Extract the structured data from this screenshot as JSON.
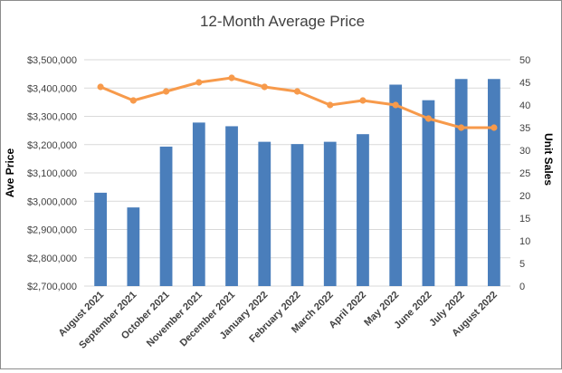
{
  "chart_data": {
    "type": "bar",
    "title": "12-Month Average Price",
    "ylabel": "Ave Price",
    "y2label": "Unit Sales",
    "categories": [
      "August 2021",
      "September 2021",
      "October 2021",
      "November 2021",
      "December 2021",
      "January 2022",
      "February 2022",
      "March 2022",
      "April 2022",
      "May 2022",
      "June 2022",
      "July 2022",
      "August 2022"
    ],
    "y_ticks": [
      "$2,700,000",
      "$2,800,000",
      "$2,900,000",
      "$3,000,000",
      "$3,100,000",
      "$3,200,000",
      "$3,300,000",
      "$3,400,000",
      "$3,500,000"
    ],
    "y2_ticks": [
      "0",
      "5",
      "10",
      "15",
      "20",
      "25",
      "30",
      "35",
      "40",
      "45",
      "50"
    ],
    "ylim": [
      2700000,
      3500000
    ],
    "y2lim": [
      0,
      50
    ],
    "grid": true,
    "legend": "none",
    "series": [
      {
        "type": "bar",
        "axis": "left",
        "color": "#4a7ebb",
        "values": [
          3030000,
          2978000,
          3193000,
          3278000,
          3265000,
          3210000,
          3202000,
          3210000,
          3237000,
          3412000,
          3357000,
          3432000,
          3432000
        ]
      },
      {
        "type": "line",
        "axis": "right",
        "color": "#f79a4b",
        "values": [
          44,
          41,
          43,
          45,
          46,
          44,
          43,
          40,
          41,
          40,
          37,
          35,
          35
        ]
      }
    ]
  }
}
